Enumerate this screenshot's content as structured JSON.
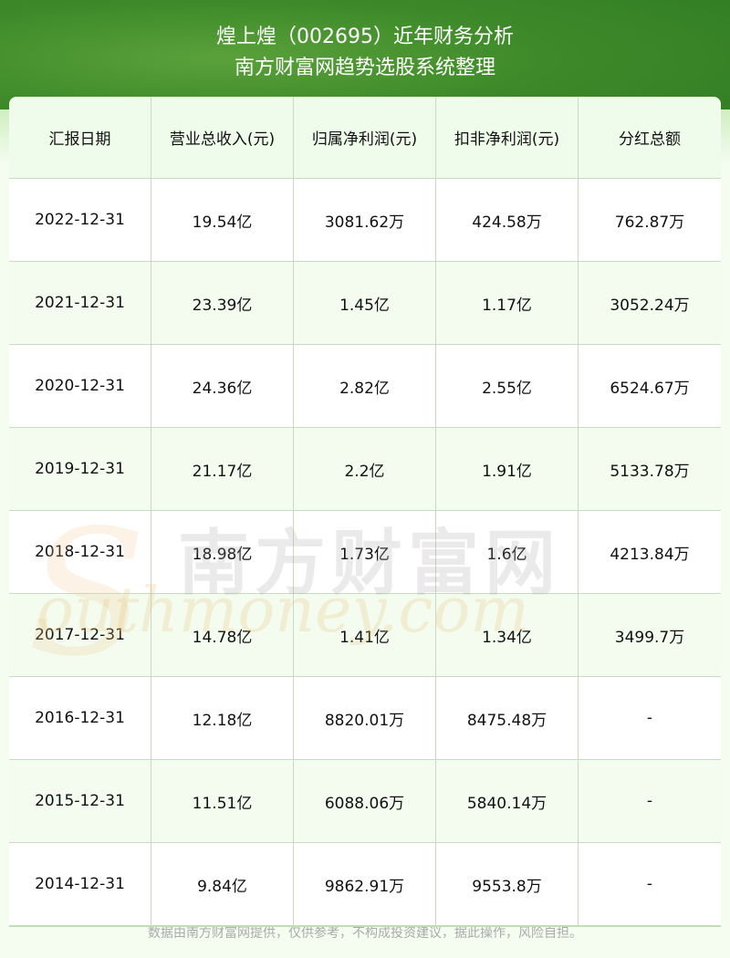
{
  "header": {
    "title": "煌上煌（002695）近年财务分析",
    "subtitle": "南方财富网趋势选股系统整理"
  },
  "table": {
    "columns": [
      "汇报日期",
      "营业总收入(元)",
      "归属净利润(元)",
      "扣非净利润(元)",
      "分红总额"
    ],
    "rows": [
      [
        "2022-12-31",
        "19.54亿",
        "3081.62万",
        "424.58万",
        "762.87万"
      ],
      [
        "2021-12-31",
        "23.39亿",
        "1.45亿",
        "1.17亿",
        "3052.24万"
      ],
      [
        "2020-12-31",
        "24.36亿",
        "2.82亿",
        "2.55亿",
        "6524.67万"
      ],
      [
        "2019-12-31",
        "21.17亿",
        "2.2亿",
        "1.91亿",
        "5133.78万"
      ],
      [
        "2018-12-31",
        "18.98亿",
        "1.73亿",
        "1.6亿",
        "4213.84万"
      ],
      [
        "2017-12-31",
        "14.78亿",
        "1.41亿",
        "1.34亿",
        "3499.7万"
      ],
      [
        "2016-12-31",
        "12.18亿",
        "8820.01万",
        "8475.48万",
        "-"
      ],
      [
        "2015-12-31",
        "11.51亿",
        "6088.06万",
        "5840.14万",
        "-"
      ],
      [
        "2014-12-31",
        "9.84亿",
        "9862.91万",
        "9553.8万",
        "-"
      ]
    ]
  },
  "watermark": {
    "cn": "南方财富网",
    "en": "outhmoney.com",
    "s": "S"
  },
  "footer": {
    "disclaimer": "数据由南方财富网提供，仅供参考，不构成投资建议，据此操作，风险自担。"
  },
  "colors": {
    "banner": "#3e8a2a",
    "header_row": "#effbeb",
    "alt_row": "#f3fcef"
  }
}
